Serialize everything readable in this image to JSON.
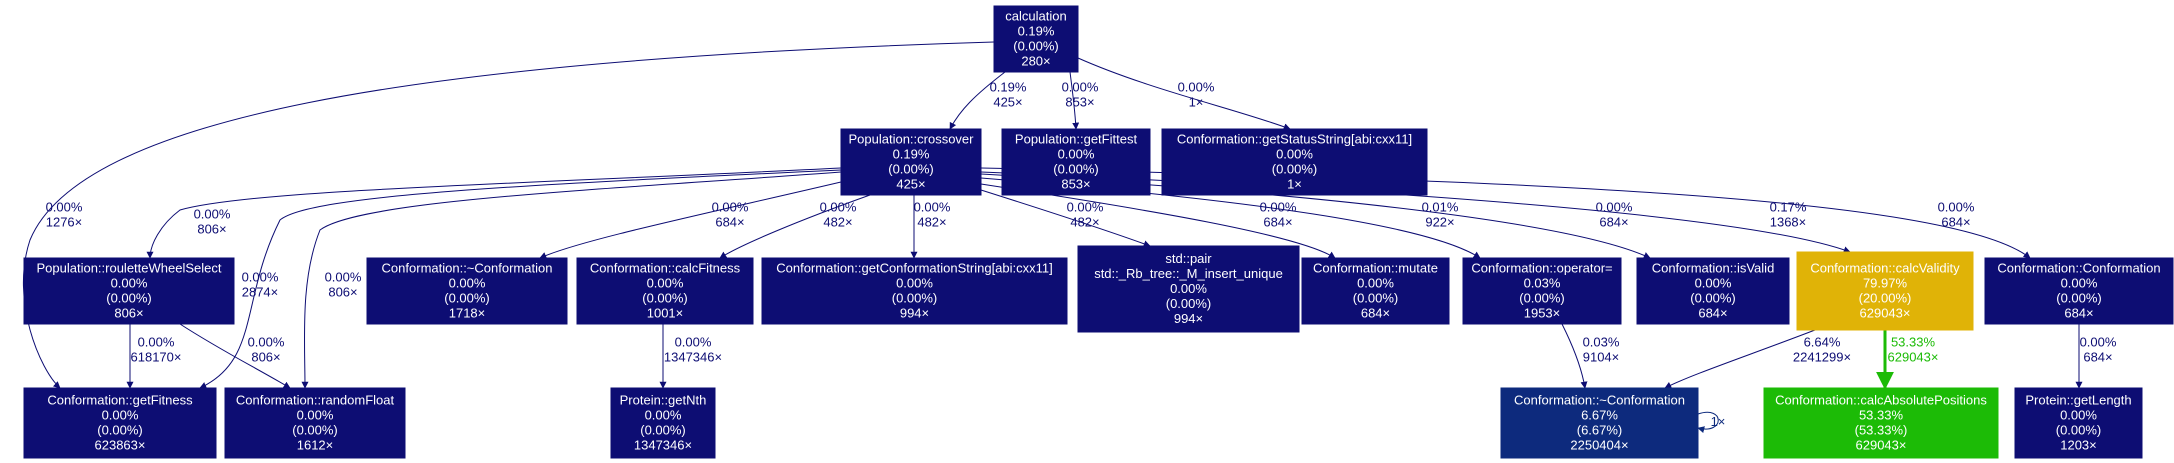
{
  "nodes": [
    {
      "id": "n_calc",
      "color": "#0d0d73",
      "text_color": "#ffffff",
      "lines": [
        "calculation",
        "0.19%",
        "(0.00%)",
        "280×"
      ]
    },
    {
      "id": "n_cross",
      "color": "#0d0d73",
      "text_color": "#ffffff",
      "lines": [
        "Population::crossover",
        "0.19%",
        "(0.00%)",
        "425×"
      ]
    },
    {
      "id": "n_getfittest",
      "color": "#0d0d73",
      "text_color": "#ffffff",
      "lines": [
        "Population::getFittest",
        "0.00%",
        "(0.00%)",
        "853×"
      ]
    },
    {
      "id": "n_status",
      "color": "#0d0d73",
      "text_color": "#ffffff",
      "lines": [
        "Conformation::getStatusString[abi:cxx11]",
        "0.00%",
        "(0.00%)",
        "1×"
      ]
    },
    {
      "id": "n_roulette",
      "color": "#0d0d73",
      "text_color": "#ffffff",
      "lines": [
        "Population::rouletteWheelSelect",
        "0.00%",
        "(0.00%)",
        "806×"
      ]
    },
    {
      "id": "n_dtor1",
      "color": "#0d0d73",
      "text_color": "#ffffff",
      "lines": [
        "Conformation::~Conformation",
        "0.00%",
        "(0.00%)",
        "1718×"
      ]
    },
    {
      "id": "n_calcfit",
      "color": "#0d0d73",
      "text_color": "#ffffff",
      "lines": [
        "Conformation::calcFitness",
        "0.00%",
        "(0.00%)",
        "1001×"
      ]
    },
    {
      "id": "n_getconf",
      "color": "#0d0d73",
      "text_color": "#ffffff",
      "lines": [
        "Conformation::getConformationString[abi:cxx11]",
        "0.00%",
        "(0.00%)",
        "994×"
      ]
    },
    {
      "id": "n_pair",
      "color": "#0d0d73",
      "text_color": "#ffffff",
      "lines": [
        "std::pair",
        "std::_Rb_tree::_M_insert_unique",
        "0.00%",
        "(0.00%)",
        "994×"
      ]
    },
    {
      "id": "n_mutate",
      "color": "#0d0d73",
      "text_color": "#ffffff",
      "lines": [
        "Conformation::mutate",
        "0.00%",
        "(0.00%)",
        "684×"
      ]
    },
    {
      "id": "n_opeq",
      "color": "#0d0d73",
      "text_color": "#ffffff",
      "lines": [
        "Conformation::operator=",
        "0.03%",
        "(0.00%)",
        "1953×"
      ]
    },
    {
      "id": "n_isvalid",
      "color": "#0d0d73",
      "text_color": "#ffffff",
      "lines": [
        "Conformation::isValid",
        "0.00%",
        "(0.00%)",
        "684×"
      ]
    },
    {
      "id": "n_calcvalid",
      "color": "#e0b307",
      "text_color": "#ffffff",
      "lines": [
        "Conformation::calcValidity",
        "79.97%",
        "(20.00%)",
        "629043×"
      ]
    },
    {
      "id": "n_ctor",
      "color": "#0d0d73",
      "text_color": "#ffffff",
      "lines": [
        "Conformation::Conformation",
        "0.00%",
        "(0.00%)",
        "684×"
      ]
    },
    {
      "id": "n_getfit",
      "color": "#0d0d73",
      "text_color": "#ffffff",
      "lines": [
        "Conformation::getFitness",
        "0.00%",
        "(0.00%)",
        "623863×"
      ]
    },
    {
      "id": "n_rand",
      "color": "#0d0d73",
      "text_color": "#ffffff",
      "lines": [
        "Conformation::randomFloat",
        "0.00%",
        "(0.00%)",
        "1612×"
      ]
    },
    {
      "id": "n_nth",
      "color": "#0d0d73",
      "text_color": "#ffffff",
      "lines": [
        "Protein::getNth",
        "0.00%",
        "(0.00%)",
        "1347346×"
      ]
    },
    {
      "id": "n_dtor2",
      "color": "#0d2a7d",
      "text_color": "#ffffff",
      "lines": [
        "Conformation::~Conformation",
        "6.67%",
        "(6.67%)",
        "2250404×"
      ]
    },
    {
      "id": "n_abs",
      "color": "#1cbb06",
      "text_color": "#ffffff",
      "lines": [
        "Conformation::calcAbsolutePositions",
        "53.33%",
        "(53.33%)",
        "629043×"
      ]
    },
    {
      "id": "n_len",
      "color": "#0d0d73",
      "text_color": "#ffffff",
      "lines": [
        "Protein::getLength",
        "0.00%",
        "(0.00%)",
        "1203×"
      ]
    }
  ],
  "edges": [
    {
      "id": "e_calc_cross",
      "color": "#0d0d73",
      "text_color": "#0d0d73",
      "lines": [
        "0.19%",
        "425×"
      ]
    },
    {
      "id": "e_calc_getfittest",
      "color": "#0d0d73",
      "text_color": "#0d0d73",
      "lines": [
        "0.00%",
        "853×"
      ]
    },
    {
      "id": "e_calc_status",
      "color": "#0d0d73",
      "text_color": "#0d0d73",
      "lines": [
        "0.00%",
        "1×"
      ]
    },
    {
      "id": "e_calc_getfit",
      "color": "#0d0d73",
      "text_color": "#0d0d73",
      "lines": [
        "0.00%",
        "1276×"
      ]
    },
    {
      "id": "e_cross_roulette",
      "color": "#0d0d73",
      "text_color": "#0d0d73",
      "lines": [
        "0.00%",
        "806×"
      ]
    },
    {
      "id": "e_cross_getfit",
      "color": "#0d0d73",
      "text_color": "#0d0d73",
      "lines": [
        "0.00%",
        "2874×"
      ]
    },
    {
      "id": "e_cross_rand",
      "color": "#0d0d73",
      "text_color": "#0d0d73",
      "lines": [
        "0.00%",
        "806×"
      ]
    },
    {
      "id": "e_cross_dtor1",
      "color": "#0d0d73",
      "text_color": "#0d0d73",
      "lines": [
        "0.00%",
        "684×"
      ]
    },
    {
      "id": "e_cross_calcfit",
      "color": "#0d0d73",
      "text_color": "#0d0d73",
      "lines": [
        "0.00%",
        "482×"
      ]
    },
    {
      "id": "e_cross_getconf",
      "color": "#0d0d73",
      "text_color": "#0d0d73",
      "lines": [
        "0.00%",
        "482×"
      ]
    },
    {
      "id": "e_cross_pair",
      "color": "#0d0d73",
      "text_color": "#0d0d73",
      "lines": [
        "0.00%",
        "482×"
      ]
    },
    {
      "id": "e_cross_mutate",
      "color": "#0d0d73",
      "text_color": "#0d0d73",
      "lines": [
        "0.00%",
        "684×"
      ]
    },
    {
      "id": "e_cross_opeq",
      "color": "#0d0d73",
      "text_color": "#0d0d73",
      "lines": [
        "0.01%",
        "922×"
      ]
    },
    {
      "id": "e_cross_isvalid",
      "color": "#0d0d73",
      "text_color": "#0d0d73",
      "lines": [
        "0.00%",
        "684×"
      ]
    },
    {
      "id": "e_cross_calcvalid",
      "color": "#0d0d73",
      "text_color": "#0d0d73",
      "lines": [
        "0.17%",
        "1368×"
      ]
    },
    {
      "id": "e_cross_ctor",
      "color": "#0d0d73",
      "text_color": "#0d0d73",
      "lines": [
        "0.00%",
        "684×"
      ]
    },
    {
      "id": "e_roulette_getfit",
      "color": "#0d0d73",
      "text_color": "#0d0d73",
      "lines": [
        "0.00%",
        "618170×"
      ]
    },
    {
      "id": "e_roulette_rand",
      "color": "#0d0d73",
      "text_color": "#0d0d73",
      "lines": [
        "0.00%",
        "806×"
      ]
    },
    {
      "id": "e_calcfit_nth",
      "color": "#0d0d73",
      "text_color": "#0d0d73",
      "lines": [
        "0.00%",
        "1347346×"
      ]
    },
    {
      "id": "e_opeq_dtor2",
      "color": "#0d0d73",
      "text_color": "#0d0d73",
      "lines": [
        "0.03%",
        "9104×"
      ]
    },
    {
      "id": "e_calcvalid_dtor2",
      "color": "#0d0d73",
      "text_color": "#0d0d73",
      "lines": [
        "6.64%",
        "2241299×"
      ]
    },
    {
      "id": "e_calcvalid_abs",
      "color": "#1cbb06",
      "text_color": "#1cbb06",
      "lines": [
        "53.33%",
        "629043×"
      ]
    },
    {
      "id": "e_ctor_len",
      "color": "#0d0d73",
      "text_color": "#0d0d73",
      "lines": [
        "0.00%",
        "684×"
      ]
    },
    {
      "id": "e_dtor2_self",
      "color": "#0d2a7d",
      "text_color": "#0d2a7d",
      "lines": [
        "1×"
      ]
    }
  ]
}
